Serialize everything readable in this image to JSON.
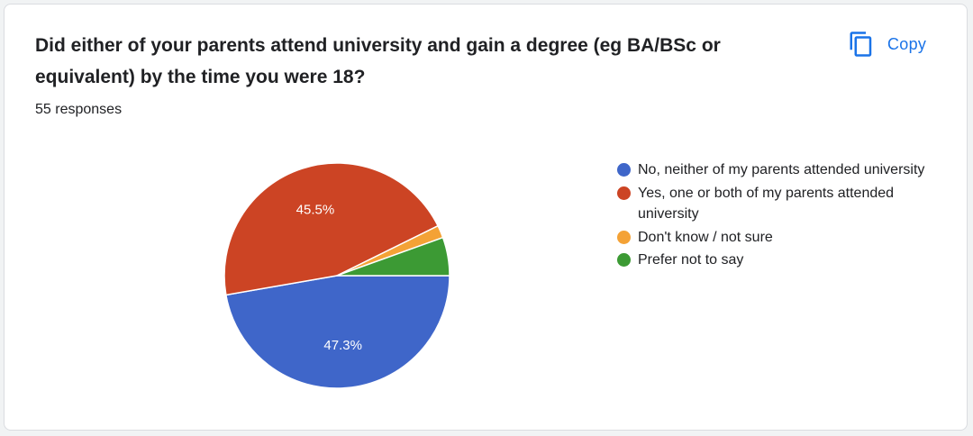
{
  "header": {
    "title": "Did either of your parents attend university and gain a degree (eg BA/BSc or equivalent) by the time you were 18?",
    "responses": "55 responses",
    "copy_label": "Copy",
    "copy_icon": "copy-icon"
  },
  "colors": {
    "blue": "#3f66c9",
    "red": "#cc4424",
    "orange": "#f4a236",
    "green": "#3c9a34",
    "accent": "#1a73e8"
  },
  "chart_data": {
    "type": "pie",
    "categories": [
      "No, neither of my parents attended university",
      "Yes, one or both of my parents attended university",
      "Don't know / not sure",
      "Prefer not to say"
    ],
    "values": [
      47.3,
      45.5,
      1.8,
      5.5
    ],
    "data_labels": [
      "47.3%",
      "45.5%",
      "",
      ""
    ],
    "colors": [
      "#3f66c9",
      "#cc4424",
      "#f4a236",
      "#3c9a34"
    ],
    "legend_position": "right"
  }
}
